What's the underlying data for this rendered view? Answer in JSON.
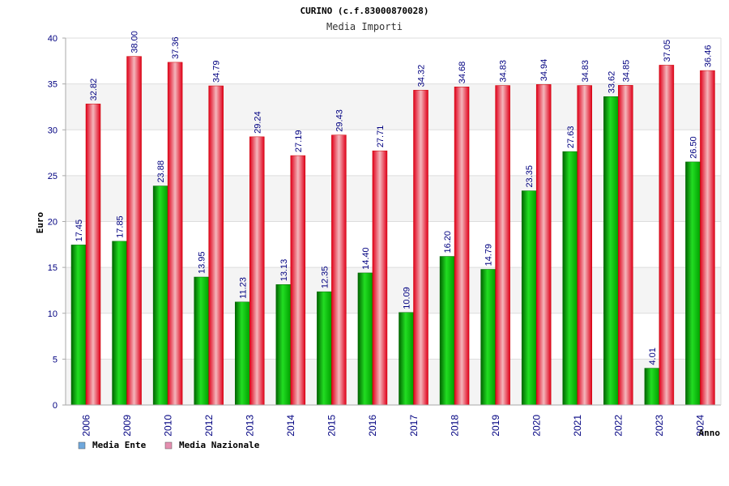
{
  "chart_data": {
    "type": "bar",
    "title": "CURINO (c.f.83000870028)",
    "subtitle": "Media Importi",
    "xlabel": "Anno",
    "ylabel": "Euro",
    "ylim": [
      0,
      40
    ],
    "yticks": [
      0,
      5,
      10,
      15,
      20,
      25,
      30,
      35,
      40
    ],
    "ytick_labels": [
      "0",
      "5",
      "10",
      "15",
      "20",
      "25",
      "30",
      "35",
      "40"
    ],
    "grid": true,
    "legend_position": "bottom-left",
    "categories": [
      "2006",
      "2009",
      "2010",
      "2012",
      "2013",
      "2014",
      "2015",
      "2016",
      "2017",
      "2018",
      "2019",
      "2020",
      "2021",
      "2022",
      "2023",
      "2024"
    ],
    "series": [
      {
        "name": "Media Ente",
        "color": "#00b000",
        "legend_color": "#6fa8dc",
        "values": [
          17.45,
          17.85,
          23.88,
          13.95,
          11.23,
          13.13,
          12.35,
          14.4,
          10.09,
          16.2,
          14.79,
          23.35,
          27.63,
          33.62,
          4.01,
          26.5
        ],
        "labels": [
          "17.45",
          "17.85",
          "23.88",
          "13.95",
          "11.23",
          "13.13",
          "12.35",
          "14.40",
          "10.09",
          "16.20",
          "14.79",
          "23.35",
          "27.63",
          "33.62",
          "4.01",
          "26.50"
        ]
      },
      {
        "name": "Media Nazionale",
        "color": "#ee1c25",
        "legend_color": "#e58fb0",
        "values": [
          32.82,
          38.0,
          37.36,
          34.79,
          29.24,
          27.19,
          29.43,
          27.71,
          34.32,
          34.68,
          34.83,
          34.94,
          34.83,
          34.85,
          37.05,
          36.46
        ],
        "labels": [
          "32.82",
          "38.00",
          "37.36",
          "34.79",
          "29.24",
          "27.19",
          "29.43",
          "27.71",
          "34.32",
          "34.68",
          "34.83",
          "34.94",
          "34.83",
          "34.85",
          "37.05",
          "36.46"
        ]
      }
    ]
  }
}
